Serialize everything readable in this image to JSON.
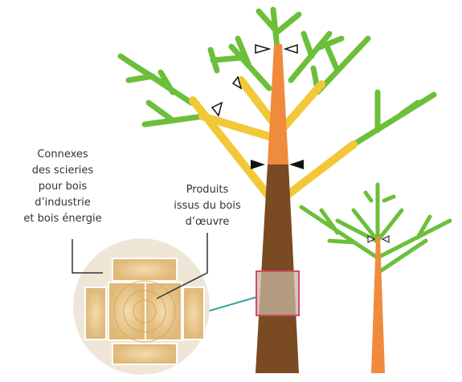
{
  "labels": {
    "byproducts": [
      "Connexes",
      "des scieries",
      "pour bois",
      "d’industrie",
      "et bois énergie"
    ],
    "products": [
      "Produits",
      "issus du bois",
      "d’œuvre"
    ]
  }
}
